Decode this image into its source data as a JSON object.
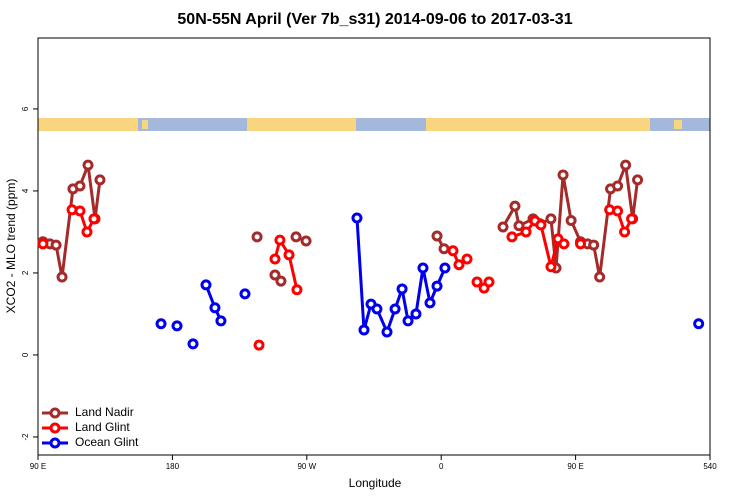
{
  "chart_data": {
    "type": "line",
    "title": "50N-55N April (Ver 7b_s31)   2014-09-06 to 2017-03-31",
    "xlabel": "Longitude",
    "ylabel": "XCO2 - MLO trend (ppm)",
    "xlim": [
      90,
      540
    ],
    "ylim": [
      -2.44,
      7.73
    ],
    "xticks": [
      {
        "value": 90,
        "label": "90 E"
      },
      180,
      {
        "value": 270,
        "label": "90 W"
      },
      {
        "value": 360,
        "label": "0"
      },
      {
        "value": 450,
        "label": "90 E"
      },
      540
    ],
    "yticks": [
      -2,
      0,
      2,
      4,
      6
    ],
    "legend": "lower left",
    "series": [
      {
        "name": "Land Nadir",
        "color": "#a52a2a",
        "x": [
          93.3,
          98.0,
          102.1,
          106.1,
          113.4,
          118.1,
          123.5,
          128.2,
          131.5,
          null,
          236.7,
          null,
          248.7,
          252.7,
          null,
          262.8,
          269.5,
          null,
          357.2,
          361.9,
          null,
          401.4,
          409.4,
          412.1,
          421.5,
          426.2,
          433.5,
          436.9,
          441.6,
          447.0,
          453.3,
          458.0,
          462.1,
          466.1,
          473.4,
          478.1,
          483.5,
          488.2,
          491.5
        ],
        "values": [
          2.76,
          2.71,
          2.68,
          1.9,
          4.05,
          4.12,
          4.63,
          3.32,
          4.27,
          null,
          2.88,
          null,
          1.95,
          1.8,
          null,
          2.88,
          2.78,
          null,
          2.9,
          2.59,
          null,
          3.12,
          3.63,
          3.15,
          3.32,
          3.2,
          3.32,
          2.12,
          4.39,
          3.28,
          2.76,
          2.71,
          2.68,
          1.9,
          4.05,
          4.12,
          4.63,
          3.32,
          4.27
        ]
      },
      {
        "name": "Land Glint",
        "color": "#ff0000",
        "x": [
          93.3,
          null,
          112.8,
          118.1,
          122.8,
          127.5,
          null,
          238.0,
          null,
          248.7,
          252.0,
          258.1,
          263.4,
          null,
          367.9,
          371.9,
          377.3,
          null,
          384.0,
          388.7,
          392.0,
          null,
          407.4,
          416.8,
          422.8,
          426.8,
          433.5,
          438.2,
          442.2,
          null,
          453.3,
          null,
          472.8,
          478.1,
          482.8,
          487.5
        ],
        "values": [
          2.71,
          null,
          3.54,
          3.51,
          3.0,
          3.32,
          null,
          0.24,
          null,
          2.34,
          2.8,
          2.44,
          1.59,
          null,
          2.54,
          2.2,
          2.34,
          null,
          1.78,
          1.63,
          1.78,
          null,
          2.88,
          3.0,
          3.27,
          3.17,
          2.15,
          2.83,
          2.71,
          null,
          2.71,
          null,
          3.54,
          3.51,
          3.0,
          3.32
        ]
      },
      {
        "name": "Ocean Glint",
        "color": "#0000ee",
        "x": [
          172.4,
          null,
          183.1,
          null,
          193.8,
          null,
          202.5,
          208.5,
          212.5,
          null,
          228.6,
          null,
          303.6,
          308.3,
          313.0,
          317.0,
          323.7,
          329.1,
          333.8,
          337.8,
          343.1,
          347.8,
          352.5,
          357.2,
          362.5,
          null,
          532.4
        ],
        "values": [
          0.76,
          null,
          0.71,
          null,
          0.27,
          null,
          1.71,
          1.15,
          0.83,
          null,
          1.49,
          null,
          3.34,
          0.61,
          1.24,
          1.12,
          0.56,
          1.12,
          1.61,
          0.83,
          1.0,
          2.12,
          1.27,
          1.68,
          2.12,
          null,
          0.76
        ]
      }
    ]
  }
}
